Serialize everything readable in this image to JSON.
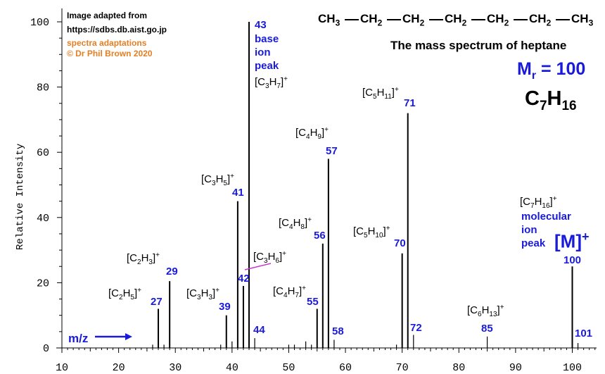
{
  "credits": {
    "line1": "Image adapted from",
    "line2": "https://sdbs.db.aist.go.jp",
    "line3": "spectra adaptations",
    "line4": "© Dr Phil Brown 2020"
  },
  "structure": [
    "CH3",
    "CH2",
    "CH2",
    "CH2",
    "CH2",
    "CH2",
    "CH3"
  ],
  "title": "The mass spectrum of heptane",
  "mr_label": "Mr = 100",
  "formula": "C7H16",
  "xlabel": "m/z",
  "ylabel": "Relative Intensity",
  "colors": {
    "axis": "#000000",
    "blue": "#1a1adb",
    "orange": "#e67e22",
    "magenta": "#cc33cc"
  },
  "chart_data": {
    "type": "bar",
    "xlim": [
      10,
      105
    ],
    "ylim": [
      0,
      100
    ],
    "xticks": [
      10,
      20,
      30,
      40,
      50,
      60,
      70,
      80,
      90,
      100
    ],
    "yticks": [
      0,
      20,
      40,
      60,
      80,
      100
    ],
    "peaks": [
      {
        "mz": 26,
        "intensity": 1
      },
      {
        "mz": 27,
        "intensity": 12
      },
      {
        "mz": 28,
        "intensity": 1
      },
      {
        "mz": 29,
        "intensity": 20.5
      },
      {
        "mz": 38,
        "intensity": 1
      },
      {
        "mz": 39,
        "intensity": 10
      },
      {
        "mz": 40,
        "intensity": 2
      },
      {
        "mz": 41,
        "intensity": 45
      },
      {
        "mz": 42,
        "intensity": 19
      },
      {
        "mz": 43,
        "intensity": 100
      },
      {
        "mz": 44,
        "intensity": 3
      },
      {
        "mz": 50,
        "intensity": 1
      },
      {
        "mz": 51,
        "intensity": 1
      },
      {
        "mz": 53,
        "intensity": 2
      },
      {
        "mz": 54,
        "intensity": 1
      },
      {
        "mz": 55,
        "intensity": 12
      },
      {
        "mz": 56,
        "intensity": 32
      },
      {
        "mz": 57,
        "intensity": 58
      },
      {
        "mz": 58,
        "intensity": 2.5
      },
      {
        "mz": 69,
        "intensity": 1
      },
      {
        "mz": 70,
        "intensity": 29
      },
      {
        "mz": 71,
        "intensity": 72
      },
      {
        "mz": 72,
        "intensity": 4
      },
      {
        "mz": 85,
        "intensity": 3.5
      },
      {
        "mz": 100,
        "intensity": 25
      },
      {
        "mz": 101,
        "intensity": 1.5
      }
    ],
    "peak_labels": [
      {
        "mz_text": "27",
        "ion": "[C2H5]+"
      },
      {
        "mz_text": "29",
        "ion": "[C2H3]+"
      },
      {
        "mz_text": "39",
        "ion": "[C3H3]+"
      },
      {
        "mz_text": "41",
        "ion": "[C3H5]+"
      },
      {
        "mz_text": "42",
        "ion": "[C3H6]+"
      },
      {
        "mz_text": "43",
        "ion": "[C3H7]+",
        "note": "base ion peak"
      },
      {
        "mz_text": "44",
        "ion": ""
      },
      {
        "mz_text": "55",
        "ion": "[C4H7]+"
      },
      {
        "mz_text": "56",
        "ion": "[C4H8]+"
      },
      {
        "mz_text": "57",
        "ion": "[C4H9]+"
      },
      {
        "mz_text": "58",
        "ion": ""
      },
      {
        "mz_text": "70",
        "ion": "[C5H10]+"
      },
      {
        "mz_text": "71",
        "ion": "[C5H11]+"
      },
      {
        "mz_text": "72",
        "ion": ""
      },
      {
        "mz_text": "85",
        "ion": "[C6H13]+"
      },
      {
        "mz_text": "100",
        "ion": "[C7H16]+",
        "note": "molecular ion peak",
        "tag": "[M]+"
      },
      {
        "mz_text": "101",
        "ion": ""
      }
    ]
  }
}
